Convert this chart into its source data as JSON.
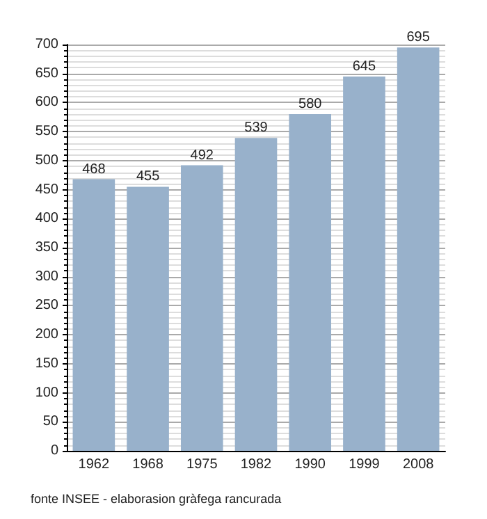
{
  "chart_data": {
    "type": "bar",
    "categories": [
      "1962",
      "1968",
      "1975",
      "1982",
      "1990",
      "1999",
      "2008"
    ],
    "values": [
      468,
      455,
      492,
      539,
      580,
      645,
      695
    ],
    "color": "#98b1cb",
    "ylim": [
      0,
      700
    ],
    "yticks": [
      0,
      50,
      100,
      150,
      200,
      250,
      300,
      350,
      400,
      450,
      500,
      550,
      600,
      650,
      700
    ],
    "grid": "y",
    "data_labels": true,
    "annotations": [
      "fonte INSEE - elaborasion gràfega rancurada"
    ]
  }
}
